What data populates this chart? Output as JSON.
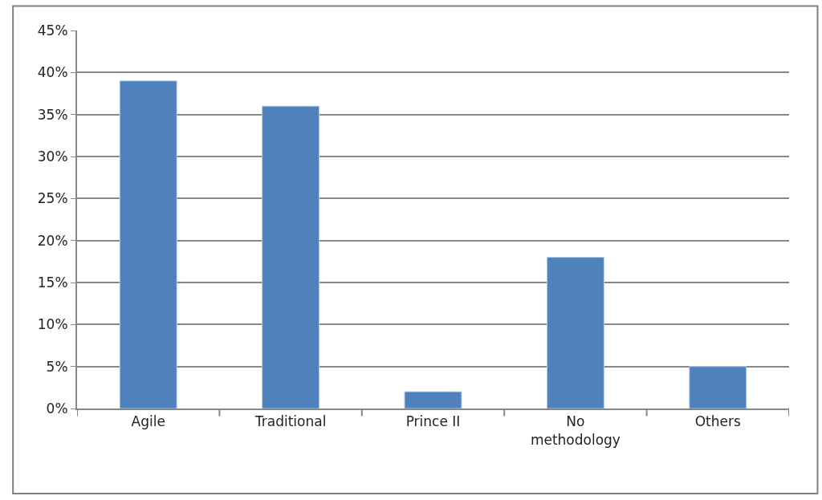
{
  "chart_data": {
    "type": "bar",
    "categories": [
      "Agile",
      "Traditional",
      "Prince II",
      "No methodology",
      "Others"
    ],
    "values": [
      39,
      36,
      2,
      18,
      5
    ],
    "color": "#4f81bd",
    "ylim": [
      0,
      45
    ],
    "yticks": [
      {
        "value": 0,
        "label": "0%"
      },
      {
        "value": 5,
        "label": "5%"
      },
      {
        "value": 10,
        "label": "10%"
      },
      {
        "value": 15,
        "label": "15%"
      },
      {
        "value": 20,
        "label": "20%"
      },
      {
        "value": 25,
        "label": "25%"
      },
      {
        "value": 30,
        "label": "30%"
      },
      {
        "value": 35,
        "label": "35%"
      },
      {
        "value": 40,
        "label": "40%"
      },
      {
        "value": 45,
        "label": "45%"
      }
    ],
    "grid": "y"
  }
}
